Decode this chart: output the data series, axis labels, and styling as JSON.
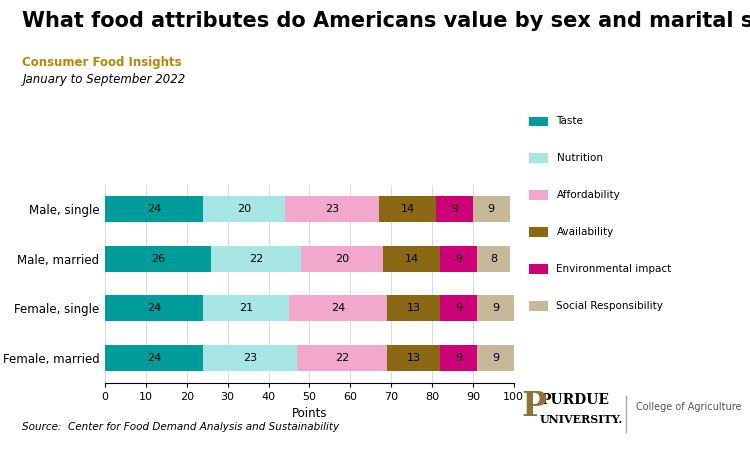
{
  "title": "What food attributes do Americans value by sex and marital status?",
  "subtitle1": "Consumer Food Insights",
  "subtitle2": "January to September 2022",
  "categories": [
    "Male, single",
    "Male, married",
    "Female, single",
    "Female, married"
  ],
  "series": [
    {
      "label": "Taste",
      "color": "#009B9B",
      "values": [
        24,
        26,
        24,
        24
      ]
    },
    {
      "label": "Nutrition",
      "color": "#A8E6E6",
      "values": [
        20,
        22,
        21,
        23
      ]
    },
    {
      "label": "Affordability",
      "color": "#F2A8CC",
      "values": [
        23,
        20,
        24,
        22
      ]
    },
    {
      "label": "Availability",
      "color": "#8B6914",
      "values": [
        14,
        14,
        13,
        13
      ]
    },
    {
      "label": "Environmental impact",
      "color": "#CC0077",
      "values": [
        9,
        9,
        9,
        9
      ]
    },
    {
      "label": "Social Responsibility",
      "color": "#C8B89A",
      "values": [
        9,
        8,
        9,
        9
      ]
    }
  ],
  "xlabel": "Points",
  "xlim": [
    0,
    100
  ],
  "xticks": [
    0,
    10,
    20,
    30,
    40,
    50,
    60,
    70,
    80,
    90,
    100
  ],
  "source_text": "Source:  Center for Food Demand Analysis and Sustainability",
  "title_fontsize": 15,
  "subtitle1_color": "#B8860B",
  "bar_height": 0.52,
  "background_color": "#FFFFFF"
}
